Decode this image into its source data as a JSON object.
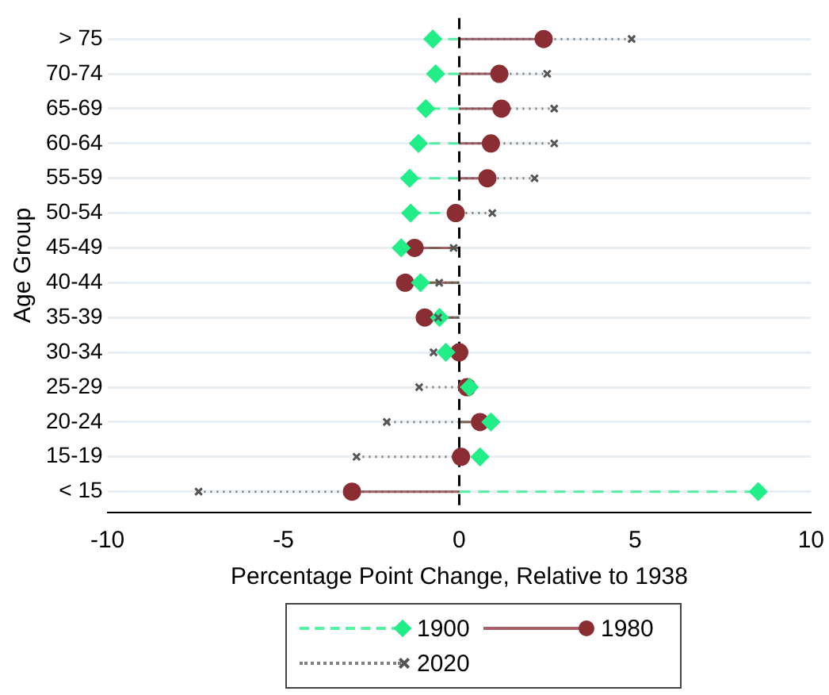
{
  "chart_data": {
    "type": "lollipop",
    "orientation": "horizontal",
    "xlabel": "Percentage Point Change, Relative to 1938",
    "ylabel": "Age Group",
    "categories": [
      "> 75",
      "70-74",
      "65-69",
      "60-64",
      "55-59",
      "50-54",
      "45-49",
      "40-44",
      "35-39",
      "30-34",
      "25-29",
      "20-24",
      "15-19",
      "< 15"
    ],
    "series": [
      {
        "name": "1900",
        "color": "#22ee88",
        "marker": "diamond",
        "line_style": "dashed",
        "values": [
          -0.75,
          -0.67,
          -0.95,
          -1.16,
          -1.41,
          -1.38,
          -1.65,
          -1.1,
          -0.56,
          -0.38,
          0.29,
          0.9,
          0.59,
          8.5
        ]
      },
      {
        "name": "1980",
        "color": "#8b2e34",
        "marker": "circle",
        "line_style": "solid",
        "values": [
          2.4,
          1.14,
          1.2,
          0.9,
          0.8,
          -0.1,
          -1.27,
          -1.54,
          -0.98,
          0,
          0.22,
          0.59,
          0.05,
          -3.05
        ]
      },
      {
        "name": "2020",
        "color": "#555555",
        "marker": "cross",
        "line_style": "dotted",
        "values": [
          4.9,
          2.5,
          2.7,
          2.7,
          2.14,
          0.94,
          -0.16,
          -0.57,
          -0.6,
          -0.73,
          -1.14,
          -2.06,
          -2.92,
          -7.41
        ]
      }
    ],
    "xlim": [
      -10,
      10
    ],
    "xticks": [
      -10,
      -5,
      0,
      5,
      10
    ],
    "grid": "y",
    "legend": "bottom",
    "ref_lines": [
      {
        "axis": "x",
        "value": 0,
        "color": "#000000",
        "line_style": "dashed"
      }
    ]
  }
}
